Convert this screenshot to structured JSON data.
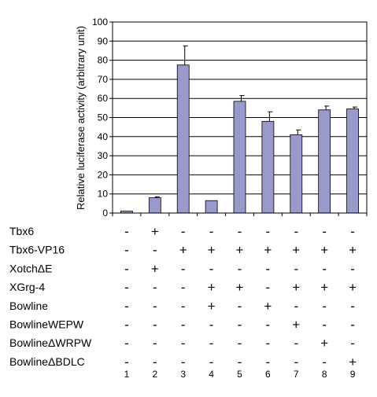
{
  "chart_data": {
    "type": "bar",
    "title": "",
    "xlabel": "",
    "ylabel": "Relative luciferase activity (arbitrary unit)",
    "ylim": [
      0,
      100
    ],
    "yticks": [
      0,
      10,
      20,
      30,
      40,
      50,
      60,
      70,
      80,
      90,
      100
    ],
    "ytick_labels": [
      "0",
      "10",
      "20",
      "30",
      "40",
      "50",
      "60",
      "70",
      "80",
      "90",
      "100"
    ],
    "grid": "horizontal",
    "categories": [
      "1",
      "2",
      "3",
      "4",
      "5",
      "6",
      "7",
      "8",
      "9"
    ],
    "series": [
      {
        "values": [
          1,
          8,
          77.5,
          6.5,
          58.5,
          48,
          41,
          54,
          54.5
        ],
        "error": [
          0,
          0.5,
          10,
          0,
          3,
          5,
          2.5,
          2,
          1
        ]
      }
    ],
    "bar_color": "#9999cc",
    "conditions": [
      {
        "label": "Tbx6",
        "signs": [
          "-",
          "+",
          "-",
          "-",
          "-",
          "-",
          "-",
          "-",
          "-"
        ]
      },
      {
        "label": "Tbx6-VP16",
        "signs": [
          "-",
          "-",
          "+",
          "+",
          "+",
          "+",
          "+",
          "+",
          "+"
        ]
      },
      {
        "label": "XotchΔE",
        "signs": [
          "-",
          "+",
          "-",
          "-",
          "-",
          "-",
          "-",
          "-",
          "-"
        ]
      },
      {
        "label": "XGrg-4",
        "signs": [
          "-",
          "-",
          "-",
          "+",
          "+",
          "-",
          "+",
          "+",
          "+"
        ]
      },
      {
        "label": "Bowline",
        "signs": [
          "-",
          "-",
          "-",
          "+",
          "-",
          "+",
          "-",
          "-",
          "-"
        ]
      },
      {
        "label": "BowlineWEPW",
        "signs": [
          "-",
          "-",
          "-",
          "-",
          "-",
          "-",
          "+",
          "-",
          "-"
        ]
      },
      {
        "label": "BowlineΔWRPW",
        "signs": [
          "-",
          "-",
          "-",
          "-",
          "-",
          "-",
          "-",
          "+",
          "-"
        ]
      },
      {
        "label": "BowlineΔBDLC",
        "signs": [
          "-",
          "-",
          "-",
          "-",
          "-",
          "-",
          "-",
          "-",
          "+"
        ]
      }
    ]
  }
}
